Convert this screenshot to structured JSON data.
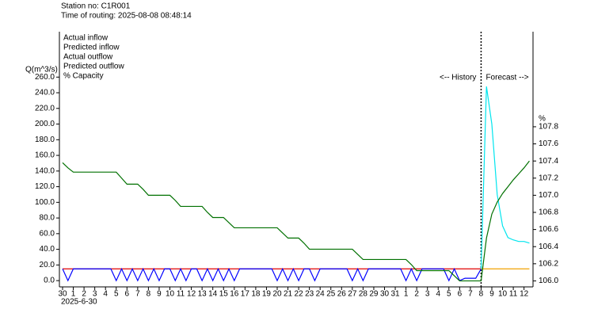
{
  "chart_data": {
    "type": "line",
    "title": "Station no: C1R001",
    "subtitle": "Time of routing: 2025-08-08 08:48:14",
    "ylabel": "Q(m^3/s)",
    "y2label": "%",
    "xlabel": "2025-6-30",
    "annotations": [
      "<-- History",
      "Forecast -->"
    ],
    "categories": [
      "30",
      null,
      "1",
      null,
      "2",
      null,
      "3",
      null,
      "4",
      null,
      "5",
      null,
      "6",
      null,
      "7",
      null,
      "8",
      null,
      "9",
      null,
      "10",
      null,
      "11",
      null,
      "12",
      null,
      "13",
      null,
      "14",
      null,
      "15",
      null,
      "16",
      null,
      "17",
      null,
      "18",
      null,
      "19",
      null,
      "20",
      null,
      "21",
      null,
      "22",
      null,
      "23",
      null,
      "24",
      null,
      "25",
      null,
      "26",
      null,
      "27",
      null,
      "28",
      null,
      "29",
      null,
      "30",
      null,
      "31",
      null,
      "1",
      null,
      "2",
      null,
      "3",
      null,
      "4",
      null,
      "5",
      null,
      "6",
      null,
      "7",
      null,
      "8",
      null,
      "9",
      null,
      "10",
      null,
      "11",
      null,
      "12",
      null
    ],
    "series": [
      {
        "name": "Actual inflow",
        "color": "#0000ff",
        "values": [
          15,
          0,
          15,
          15,
          15,
          15,
          15,
          15,
          15,
          15,
          0,
          15,
          0,
          15,
          0,
          15,
          0,
          15,
          0,
          15,
          15,
          0,
          15,
          0,
          15,
          15,
          0,
          15,
          0,
          15,
          0,
          15,
          0,
          15,
          15,
          15,
          15,
          15,
          15,
          15,
          0,
          15,
          0,
          15,
          0,
          15,
          15,
          0,
          15,
          15,
          15,
          15,
          15,
          15,
          0,
          15,
          0,
          15,
          15,
          15,
          15,
          15,
          15,
          15,
          0,
          15,
          0,
          15,
          15,
          15,
          15,
          15,
          0,
          15,
          0,
          3,
          3,
          3,
          15,
          null,
          null,
          null,
          null,
          null,
          null,
          null,
          null,
          null
        ]
      },
      {
        "name": "Predicted inflow",
        "color": "#00e5ee",
        "values": [
          null,
          null,
          null,
          null,
          null,
          null,
          null,
          null,
          null,
          null,
          null,
          null,
          null,
          null,
          null,
          null,
          null,
          null,
          null,
          null,
          null,
          null,
          null,
          null,
          null,
          null,
          null,
          null,
          null,
          null,
          null,
          null,
          null,
          null,
          null,
          null,
          null,
          null,
          null,
          null,
          null,
          null,
          null,
          null,
          null,
          null,
          null,
          null,
          null,
          null,
          null,
          null,
          null,
          null,
          null,
          null,
          null,
          null,
          null,
          null,
          null,
          null,
          null,
          null,
          null,
          null,
          null,
          null,
          null,
          null,
          null,
          null,
          null,
          null,
          null,
          null,
          null,
          null,
          15,
          248,
          200,
          110,
          70,
          55,
          52,
          50,
          50,
          48
        ]
      },
      {
        "name": "Actual outflow",
        "color": "#e00000",
        "values": [
          15,
          15,
          15,
          15,
          15,
          15,
          15,
          15,
          15,
          15,
          15,
          15,
          15,
          15,
          15,
          15,
          15,
          15,
          15,
          15,
          15,
          15,
          15,
          15,
          15,
          15,
          15,
          15,
          15,
          15,
          15,
          15,
          15,
          15,
          15,
          15,
          15,
          15,
          15,
          15,
          15,
          15,
          15,
          15,
          15,
          15,
          15,
          15,
          15,
          15,
          15,
          15,
          15,
          15,
          15,
          15,
          15,
          15,
          15,
          15,
          15,
          15,
          15,
          15,
          15,
          15,
          15,
          15,
          15,
          15,
          15,
          15,
          15,
          15,
          15,
          15,
          15,
          15,
          15,
          null,
          null,
          null,
          null,
          null,
          null,
          null,
          null,
          null
        ]
      },
      {
        "name": "Predicted outflow",
        "color": "#f0a000",
        "values": [
          null,
          null,
          null,
          null,
          null,
          null,
          null,
          null,
          null,
          null,
          null,
          null,
          null,
          null,
          null,
          null,
          null,
          null,
          null,
          null,
          null,
          null,
          null,
          null,
          null,
          null,
          null,
          null,
          null,
          null,
          null,
          null,
          null,
          null,
          null,
          null,
          null,
          null,
          null,
          null,
          null,
          null,
          null,
          null,
          null,
          null,
          null,
          null,
          null,
          null,
          null,
          null,
          null,
          null,
          null,
          null,
          null,
          null,
          null,
          null,
          null,
          null,
          null,
          null,
          null,
          null,
          null,
          null,
          null,
          null,
          null,
          null,
          null,
          null,
          null,
          null,
          null,
          null,
          15,
          15,
          15,
          15,
          15,
          15,
          15,
          15,
          15,
          15
        ]
      },
      {
        "name": "% Capacity",
        "color": "#007000",
        "axis": "y2",
        "values": [
          107.38,
          107.32,
          107.27,
          107.27,
          107.27,
          107.27,
          107.27,
          107.27,
          107.27,
          107.27,
          107.27,
          107.2,
          107.13,
          107.13,
          107.13,
          107.07,
          107,
          107,
          107,
          107,
          107,
          106.94,
          106.87,
          106.87,
          106.87,
          106.87,
          106.87,
          106.8,
          106.74,
          106.74,
          106.74,
          106.68,
          106.62,
          106.62,
          106.62,
          106.62,
          106.62,
          106.62,
          106.62,
          106.62,
          106.62,
          106.56,
          106.5,
          106.5,
          106.5,
          106.44,
          106.37,
          106.37,
          106.37,
          106.37,
          106.37,
          106.37,
          106.37,
          106.37,
          106.37,
          106.31,
          106.25,
          106.25,
          106.25,
          106.25,
          106.25,
          106.25,
          106.25,
          106.25,
          106.25,
          106.19,
          106.12,
          106.12,
          106.12,
          106.12,
          106.12,
          106.12,
          106.12,
          106.06,
          106,
          106,
          106,
          106,
          106,
          106.5,
          106.78,
          106.92,
          107.02,
          107.1,
          107.18,
          107.25,
          107.32,
          107.4
        ]
      }
    ],
    "ylim": [
      -8,
      318
    ],
    "yticks": [
      {
        "value": 0,
        "label": "0.0"
      },
      {
        "value": 20,
        "label": "20.0"
      },
      {
        "value": 40,
        "label": "40.0"
      },
      {
        "value": 60,
        "label": "60.0"
      },
      {
        "value": 80,
        "label": "80.0"
      },
      {
        "value": 100,
        "label": "100.0"
      },
      {
        "value": 120,
        "label": "120.0"
      },
      {
        "value": 140,
        "label": "140.0"
      },
      {
        "value": 160,
        "label": "160.0"
      },
      {
        "value": 180,
        "label": "180.0"
      },
      {
        "value": 200,
        "label": "200.0"
      },
      {
        "value": 220,
        "label": "220.0"
      },
      {
        "value": 240,
        "label": "240.0"
      },
      {
        "value": 260,
        "label": "260.0"
      }
    ],
    "y2lim": [
      105.93,
      108.91
    ],
    "y2ticks": [
      {
        "value": 106,
        "label": "106.0"
      },
      106.2,
      106.4,
      106.6,
      106.8,
      {
        "value": 107,
        "label": "107.0"
      },
      107.2,
      107.4,
      107.6,
      107.8
    ],
    "grid": false
  }
}
